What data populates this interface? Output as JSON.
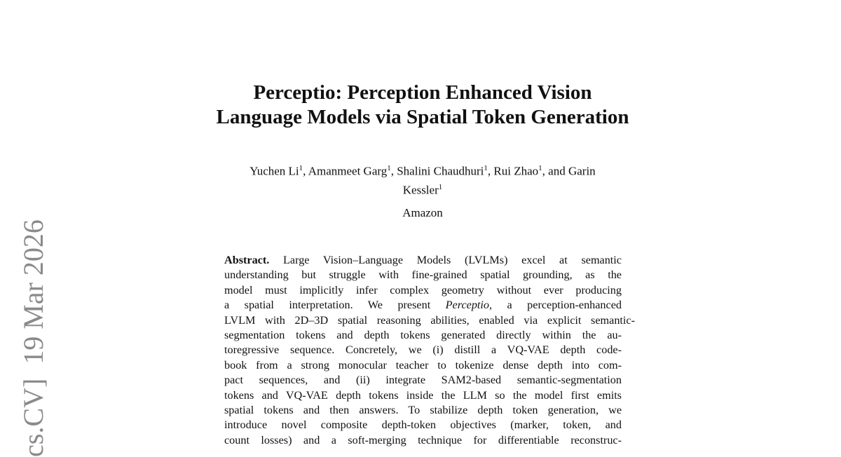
{
  "sidebar_stamp": "cs.CV]  19 Mar 2026",
  "title_lines": [
    "Perceptio: Perception Enhanced Vision",
    "Language Models via Spatial Token Generation"
  ],
  "authors": {
    "line1": [
      {
        "name": "Yuchen Li",
        "sup": "1",
        "sep": ", "
      },
      {
        "name": "Amanmeet Garg",
        "sup": "1",
        "sep": ", "
      },
      {
        "name": "Shalini Chaudhuri",
        "sup": "1",
        "sep": ", "
      },
      {
        "name": "Rui Zhao",
        "sup": "1",
        "sep": ", and Garin"
      }
    ],
    "line2": {
      "name": "Kessler",
      "sup": "1"
    }
  },
  "affiliation": "Amazon",
  "abstract": {
    "label": "Abstract.",
    "lines": [
      " Large Vision–Language Models (LVLMs) excel at semantic",
      "understanding but struggle with fine-grained spatial grounding, as the",
      "model must implicitly infer complex geometry without ever producing",
      "a spatial interpretation. We present ",
      "LVLM with 2D–3D spatial reasoning abilities, enabled via explicit semantic-",
      "segmentation tokens and depth tokens generated directly within the au-",
      "toregressive sequence. Concretely, we (i) distill a VQ-VAE depth code-",
      "book from a strong monocular teacher to tokenize dense depth into com-",
      "pact sequences, and (ii) integrate SAM2-based semantic-segmentation",
      "tokens and VQ-VAE depth tokens inside the LLM so the model first emits",
      "spatial tokens and then answers. To stabilize depth token generation, we",
      "introduce novel composite depth-token objectives (marker, token, and",
      "count losses) and a soft-merging technique for differentiable reconstruc-"
    ],
    "line4_italic": "Perceptio",
    "line4_rest": ", a perception-enhanced"
  }
}
